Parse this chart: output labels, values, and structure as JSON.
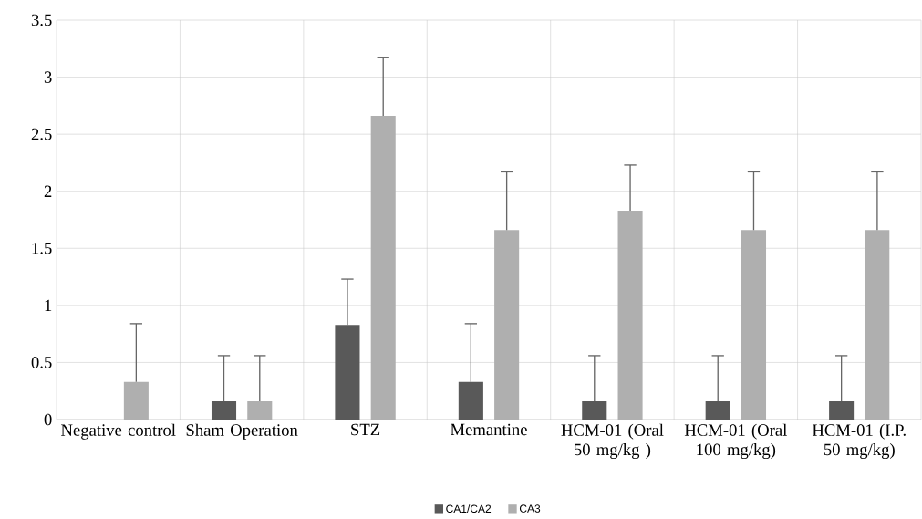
{
  "chart_data": {
    "type": "bar",
    "categories": [
      "Negative control",
      "Sham Operation",
      "STZ",
      "Memantine",
      "HCM-01 (Oral 50 mg/kg )",
      "HCM-01 (Oral 100 mg/kg)",
      "HCM-01 (I.P. 50 mg/kg)"
    ],
    "series": [
      {
        "name": "CA1/CA2",
        "color": "#595959",
        "values": [
          0,
          0.16,
          0.83,
          0.33,
          0.16,
          0.16,
          0.16
        ],
        "errors": [
          null,
          [
            0.16,
            0.56
          ],
          [
            0.83,
            1.23
          ],
          [
            0.33,
            0.84
          ],
          [
            0.16,
            0.56
          ],
          [
            0.16,
            0.56
          ],
          [
            0.16,
            0.56
          ]
        ]
      },
      {
        "name": "CA3",
        "color": "#afafaf",
        "values": [
          0.33,
          0.16,
          2.66,
          1.66,
          1.83,
          1.66,
          1.66
        ],
        "errors": [
          [
            0.33,
            0.84
          ],
          [
            0.16,
            0.56
          ],
          [
            2.66,
            3.17
          ],
          [
            1.66,
            2.17
          ],
          [
            1.83,
            2.23
          ],
          [
            1.66,
            2.17
          ],
          [
            1.66,
            2.17
          ]
        ]
      }
    ],
    "ylim": [
      0,
      3.5
    ],
    "yticks": [
      0,
      0.5,
      1,
      1.5,
      2,
      2.5,
      3,
      3.5
    ],
    "grid": true,
    "legend": "bottom"
  }
}
